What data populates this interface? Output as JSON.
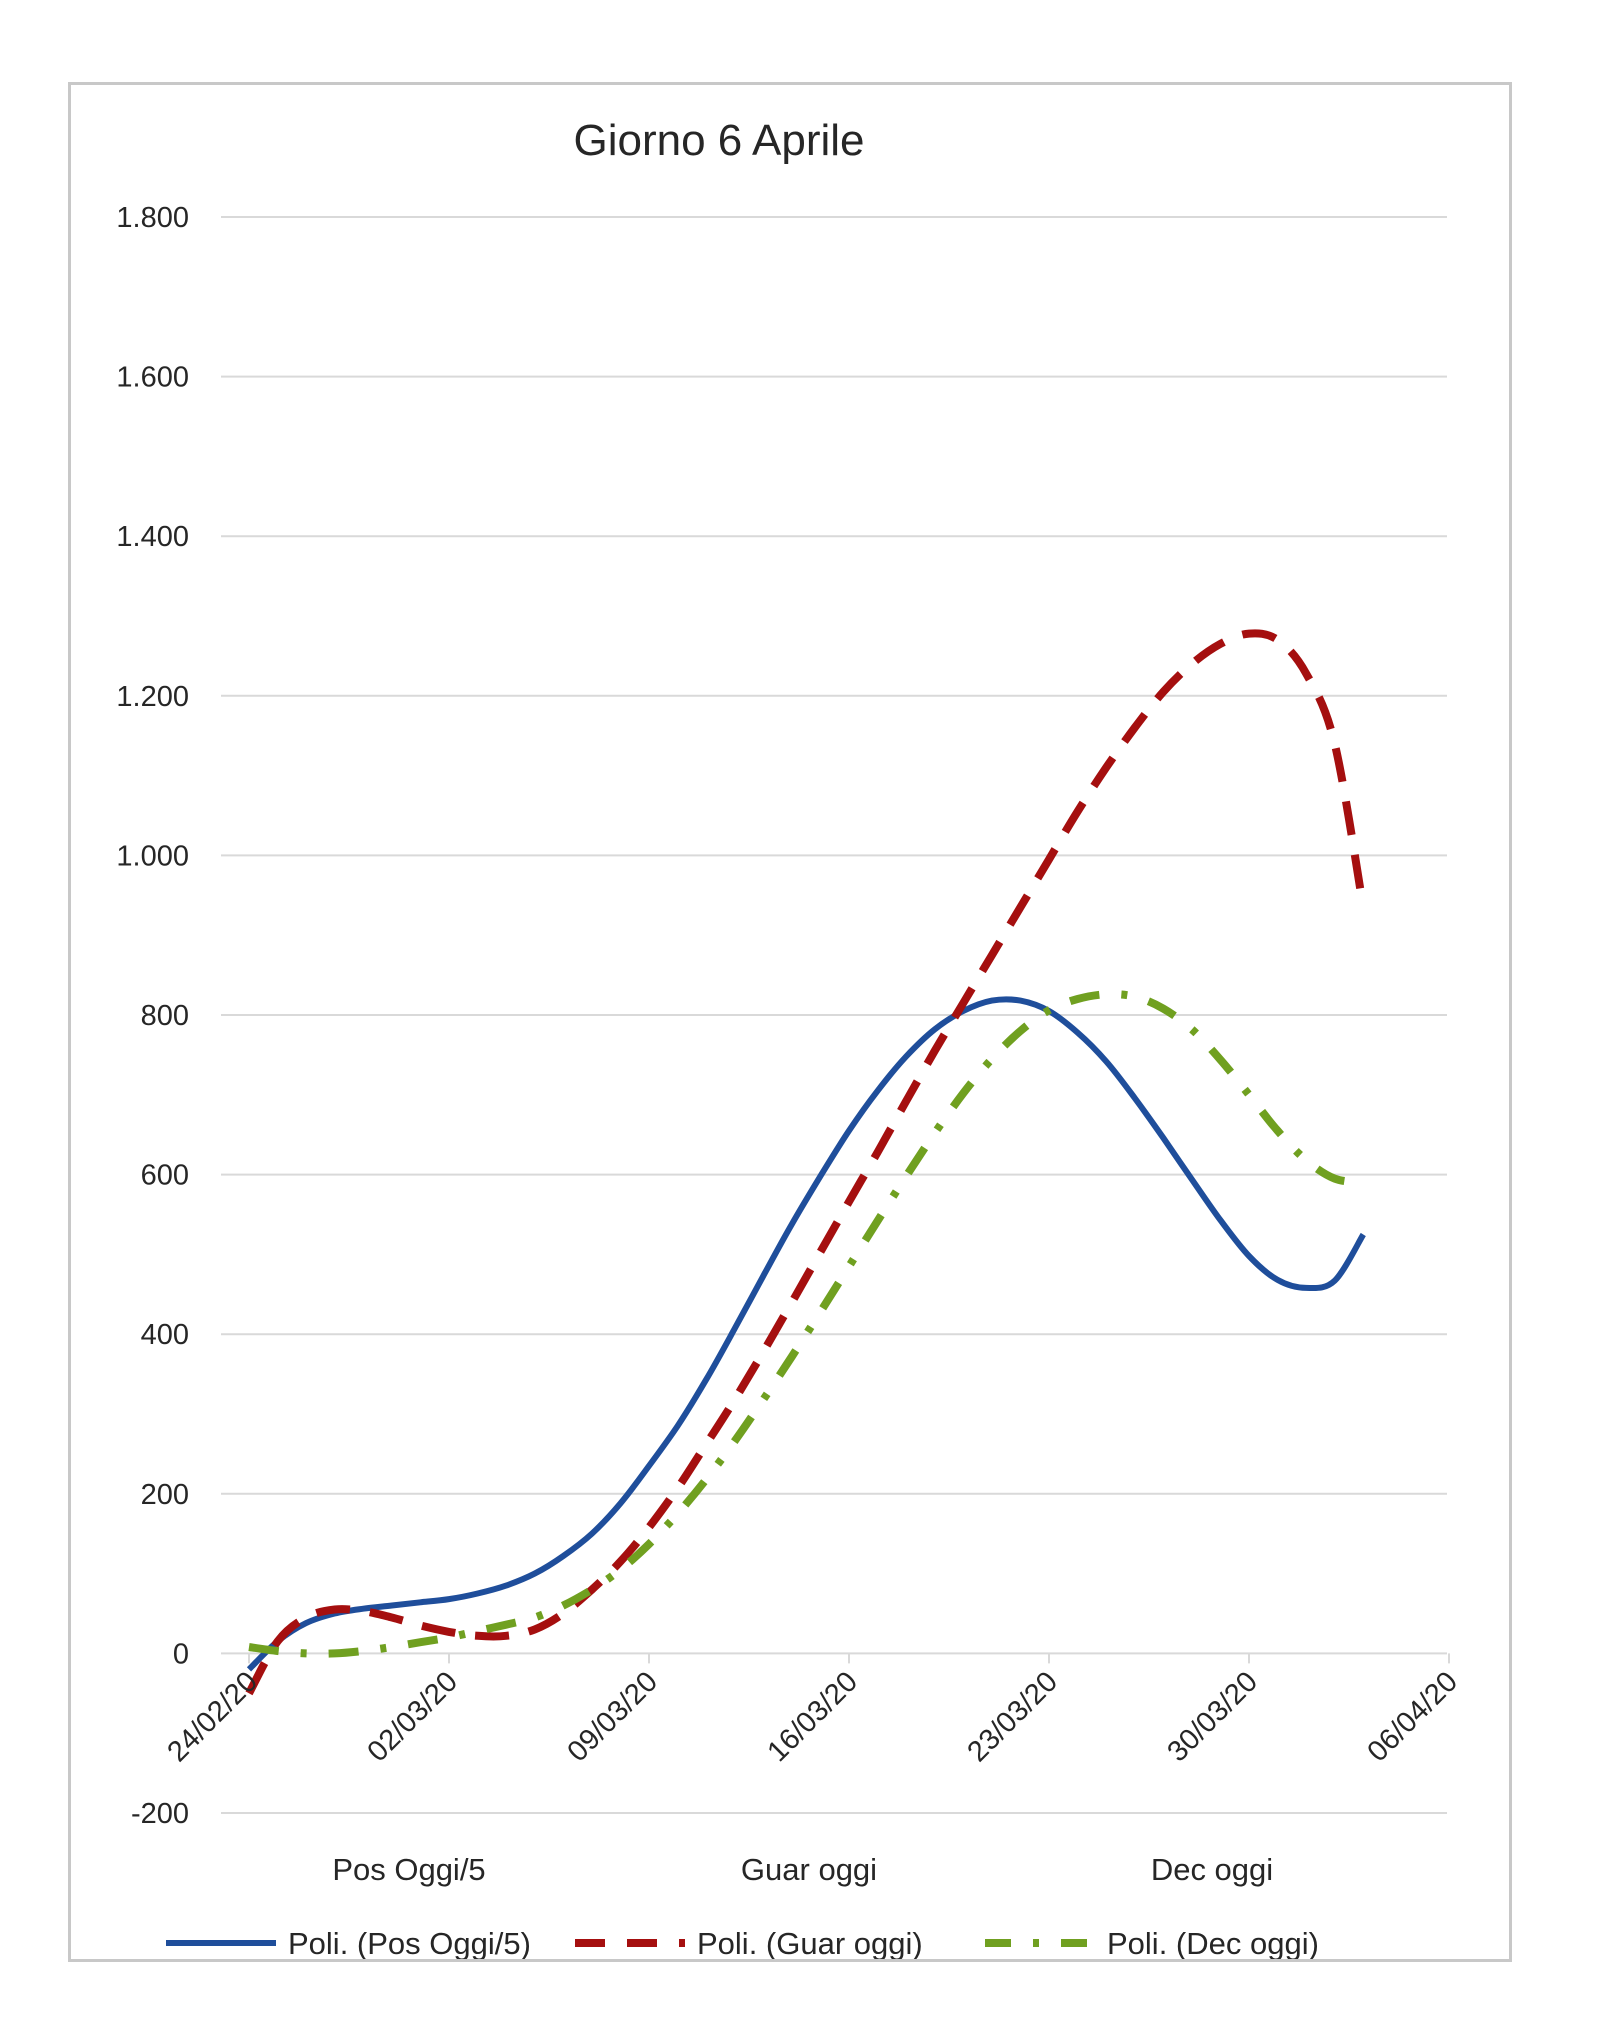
{
  "chart_data": {
    "type": "line",
    "title": "Giorno 6 Aprile",
    "xlabel": "",
    "ylabel": "",
    "ylim": [
      -200,
      1800
    ],
    "yticks": [
      -200,
      0,
      200,
      400,
      600,
      800,
      1000,
      1200,
      1400,
      1600,
      1800
    ],
    "ytick_labels": [
      "-200",
      "0",
      "200",
      "400",
      "600",
      "800",
      "1.000",
      "1.200",
      "1.400",
      "1.600",
      "1.800"
    ],
    "xticks": [
      "24/02/20",
      "02/03/20",
      "09/03/20",
      "16/03/20",
      "23/03/20",
      "30/03/20",
      "06/04/20"
    ],
    "grid": true,
    "legend_position": "bottom",
    "series_labels": [
      "Pos Oggi/5",
      "Guar oggi",
      "Dec oggi"
    ],
    "series": [
      {
        "name": "Poli. (Pos Oggi/5)",
        "color": "#1f4e9b",
        "style": "solid",
        "points": [
          [
            "24/02/20",
            -20
          ],
          [
            "25/02/20",
            15
          ],
          [
            "26/02/20",
            38
          ],
          [
            "27/02/20",
            50
          ],
          [
            "28/02/20",
            56
          ],
          [
            "29/02/20",
            60
          ],
          [
            "01/03/20",
            64
          ],
          [
            "02/03/20",
            68
          ],
          [
            "03/03/20",
            75
          ],
          [
            "04/03/20",
            85
          ],
          [
            "05/03/20",
            100
          ],
          [
            "06/03/20",
            122
          ],
          [
            "07/03/20",
            150
          ],
          [
            "08/03/20",
            188
          ],
          [
            "09/03/20",
            235
          ],
          [
            "10/03/20",
            285
          ],
          [
            "11/03/20",
            343
          ],
          [
            "12/03/20",
            407
          ],
          [
            "13/03/20",
            473
          ],
          [
            "14/03/20",
            538
          ],
          [
            "15/03/20",
            598
          ],
          [
            "16/03/20",
            655
          ],
          [
            "17/03/20",
            705
          ],
          [
            "18/03/20",
            748
          ],
          [
            "19/03/20",
            782
          ],
          [
            "20/03/20",
            805
          ],
          [
            "21/03/20",
            818
          ],
          [
            "22/03/20",
            818
          ],
          [
            "23/03/20",
            805
          ],
          [
            "24/03/20",
            778
          ],
          [
            "25/03/20",
            742
          ],
          [
            "26/03/20",
            696
          ],
          [
            "27/03/20",
            646
          ],
          [
            "28/03/20",
            594
          ],
          [
            "29/03/20",
            543
          ],
          [
            "30/03/20",
            498
          ],
          [
            "31/03/20",
            468
          ],
          [
            "01/04/20",
            458
          ],
          [
            "02/04/20",
            467
          ],
          [
            "03/04/20",
            525
          ]
        ]
      },
      {
        "name": "Poli. (Guar oggi)",
        "color": "#a50f0f",
        "style": "dash",
        "points": [
          [
            "24/02/20",
            -50
          ],
          [
            "25/02/20",
            15
          ],
          [
            "26/02/20",
            45
          ],
          [
            "27/02/20",
            55
          ],
          [
            "28/02/20",
            53
          ],
          [
            "29/02/20",
            45
          ],
          [
            "01/03/20",
            35
          ],
          [
            "02/03/20",
            27
          ],
          [
            "03/03/20",
            22
          ],
          [
            "04/03/20",
            22
          ],
          [
            "05/03/20",
            30
          ],
          [
            "06/03/20",
            50
          ],
          [
            "07/03/20",
            80
          ],
          [
            "08/03/20",
            115
          ],
          [
            "09/03/20",
            158
          ],
          [
            "10/03/20",
            207
          ],
          [
            "11/03/20",
            262
          ],
          [
            "12/03/20",
            318
          ],
          [
            "13/03/20",
            378
          ],
          [
            "14/03/20",
            440
          ],
          [
            "15/03/20",
            503
          ],
          [
            "16/03/20",
            566
          ],
          [
            "17/03/20",
            628
          ],
          [
            "18/03/20",
            692
          ],
          [
            "19/03/20",
            755
          ],
          [
            "20/03/20",
            815
          ],
          [
            "21/03/20",
            875
          ],
          [
            "22/03/20",
            935
          ],
          [
            "23/03/20",
            995
          ],
          [
            "24/03/20",
            1055
          ],
          [
            "25/03/20",
            1110
          ],
          [
            "26/03/20",
            1160
          ],
          [
            "27/03/20",
            1205
          ],
          [
            "28/03/20",
            1240
          ],
          [
            "29/03/20",
            1265
          ],
          [
            "30/03/20",
            1278
          ],
          [
            "31/03/20",
            1270
          ],
          [
            "01/04/20",
            1228
          ],
          [
            "02/04/20",
            1140
          ],
          [
            "03/04/20",
            935
          ]
        ]
      },
      {
        "name": "Poli. (Dec oggi)",
        "color": "#70a020",
        "style": "dashdot",
        "points": [
          [
            "24/02/20",
            8
          ],
          [
            "25/02/20",
            3
          ],
          [
            "26/02/20",
            0
          ],
          [
            "27/02/20",
            0
          ],
          [
            "28/02/20",
            3
          ],
          [
            "29/02/20",
            8
          ],
          [
            "01/03/20",
            14
          ],
          [
            "02/03/20",
            20
          ],
          [
            "03/03/20",
            28
          ],
          [
            "04/03/20",
            36
          ],
          [
            "05/03/20",
            45
          ],
          [
            "06/03/20",
            60
          ],
          [
            "07/03/20",
            80
          ],
          [
            "08/03/20",
            105
          ],
          [
            "09/03/20",
            137
          ],
          [
            "10/03/20",
            175
          ],
          [
            "11/03/20",
            218
          ],
          [
            "12/03/20",
            266
          ],
          [
            "13/03/20",
            318
          ],
          [
            "14/03/20",
            372
          ],
          [
            "15/03/20",
            428
          ],
          [
            "16/03/20",
            485
          ],
          [
            "17/03/20",
            542
          ],
          [
            "18/03/20",
            598
          ],
          [
            "19/03/20",
            652
          ],
          [
            "20/03/20",
            702
          ],
          [
            "21/03/20",
            745
          ],
          [
            "22/03/20",
            780
          ],
          [
            "23/03/20",
            806
          ],
          [
            "24/03/20",
            820
          ],
          [
            "25/03/20",
            826
          ],
          [
            "26/03/20",
            823
          ],
          [
            "27/03/20",
            808
          ],
          [
            "28/03/20",
            782
          ],
          [
            "29/03/20",
            744
          ],
          [
            "30/03/20",
            700
          ],
          [
            "31/03/20",
            655
          ],
          [
            "01/04/20",
            618
          ],
          [
            "02/04/20",
            595
          ],
          [
            "03/04/20",
            590
          ]
        ]
      }
    ]
  }
}
